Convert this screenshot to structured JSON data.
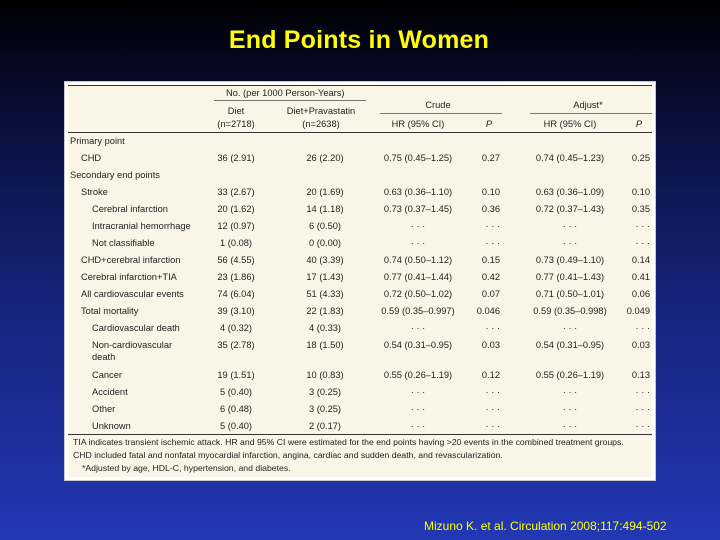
{
  "slide": {
    "title": "End Points in Women",
    "citation": "Mizuno K. et al. Circulation 2008;117:494-502"
  },
  "table": {
    "group_header": "No. (per 1000 Person-Years)",
    "crude_header": "Crude",
    "adjust_header": "Adjust*",
    "col_diet": "Diet",
    "col_diet_n": "(n=2718)",
    "col_diet_prav": "Diet+Pravastatin",
    "col_diet_prav_n": "(n=2638)",
    "col_hr1": "HR (95% CI)",
    "col_p1": "P",
    "col_hr2": "HR (95% CI)",
    "col_p2": "P",
    "rows": [
      {
        "label": "Primary point",
        "indent": 0,
        "section": true
      },
      {
        "label": "CHD",
        "indent": 1,
        "diet": "36 (2.91)",
        "prav": "26 (2.20)",
        "hr1": "0.75 (0.45–1.25)",
        "p1": "0.27",
        "hr2": "0.74 (0.45–1.23)",
        "p2": "0.25"
      },
      {
        "label": "Secondary end points",
        "indent": 0,
        "section": true
      },
      {
        "label": "Stroke",
        "indent": 1,
        "diet": "33 (2.67)",
        "prav": "20 (1.69)",
        "hr1": "0.63 (0.36–1.10)",
        "p1": "0.10",
        "hr2": "0.63 (0.36–1.09)",
        "p2": "0.10"
      },
      {
        "label": "Cerebral infarction",
        "indent": 2,
        "diet": "20 (1.62)",
        "prav": "14 (1.18)",
        "hr1": "0.73 (0.37–1.45)",
        "p1": "0.36",
        "hr2": "0.72 (0.37–1.43)",
        "p2": "0.35"
      },
      {
        "label": "Intracranial hemorrhage",
        "indent": 2,
        "diet": "12 (0.97)",
        "prav": "6 (0.50)",
        "hr1": "· · ·",
        "p1": "· · ·",
        "hr2": "· · ·",
        "p2": "· · ·"
      },
      {
        "label": "Not classifiable",
        "indent": 2,
        "diet": "1 (0.08)",
        "prav": "0 (0.00)",
        "hr1": "· · ·",
        "p1": "· · ·",
        "hr2": "· · ·",
        "p2": "· · ·"
      },
      {
        "label": "CHD+cerebral infarction",
        "indent": 1,
        "diet": "56 (4.55)",
        "prav": "40 (3.39)",
        "hr1": "0.74 (0.50–1.12)",
        "p1": "0.15",
        "hr2": "0.73 (0.49–1.10)",
        "p2": "0.14"
      },
      {
        "label": "Cerebral infarction+TIA",
        "indent": 1,
        "diet": "23 (1.86)",
        "prav": "17 (1.43)",
        "hr1": "0.77 (0.41–1.44)",
        "p1": "0.42",
        "hr2": "0.77 (0.41–1.43)",
        "p2": "0.41"
      },
      {
        "label": "All cardiovascular events",
        "indent": 1,
        "diet": "74 (6.04)",
        "prav": "51 (4.33)",
        "hr1": "0.72 (0.50–1.02)",
        "p1": "0.07",
        "hr2": "0.71 (0.50–1.01)",
        "p2": "0.06"
      },
      {
        "label": "Total mortality",
        "indent": 1,
        "diet": "39 (3.10)",
        "prav": "22 (1.83)",
        "hr1": "0.59 (0.35–0.997)",
        "p1": "0.046",
        "hr2": "0.59 (0.35–0.998)",
        "p2": "0.049"
      },
      {
        "label": "Cardiovascular death",
        "indent": 2,
        "diet": "4 (0.32)",
        "prav": "4 (0.33)",
        "hr1": "· · ·",
        "p1": "· · ·",
        "hr2": "· · ·",
        "p2": "· · ·"
      },
      {
        "label": "Non-cardiovascular",
        "label2": "death",
        "indent": 2,
        "diet": "35 (2.78)",
        "prav": "18 (1.50)",
        "hr1": "0.54 (0.31–0.95)",
        "p1": "0.03",
        "hr2": "0.54 (0.31–0.95)",
        "p2": "0.03"
      },
      {
        "label": "Cancer",
        "indent": 2,
        "diet": "19 (1.51)",
        "prav": "10 (0.83)",
        "hr1": "0.55 (0.26–1.19)",
        "p1": "0.12",
        "hr2": "0.55 (0.26–1.19)",
        "p2": "0.13"
      },
      {
        "label": "Accident",
        "indent": 2,
        "diet": "5 (0.40)",
        "prav": "3 (0.25)",
        "hr1": "· · ·",
        "p1": "· · ·",
        "hr2": "· · ·",
        "p2": "· · ·"
      },
      {
        "label": "Other",
        "indent": 2,
        "diet": "6 (0.48)",
        "prav": "3 (0.25)",
        "hr1": "· · ·",
        "p1": "· · ·",
        "hr2": "· · ·",
        "p2": "· · ·"
      },
      {
        "label": "Unknown",
        "indent": 2,
        "diet": "5 (0.40)",
        "prav": "2 (0.17)",
        "hr1": "· · ·",
        "p1": "· · ·",
        "hr2": "· · ·",
        "p2": "· · ·"
      }
    ],
    "footnotes": [
      "TIA indicates transient ischemic attack. HR and 95% CI were estimated for the end points having >20 events in the combined treatment groups.",
      "CHD included fatal and nonfatal myocardial infarction, angina, cardiac and sudden death, and revascularization.",
      "*Adjusted by age, HDL-C, hypertension, and diabetes."
    ]
  }
}
